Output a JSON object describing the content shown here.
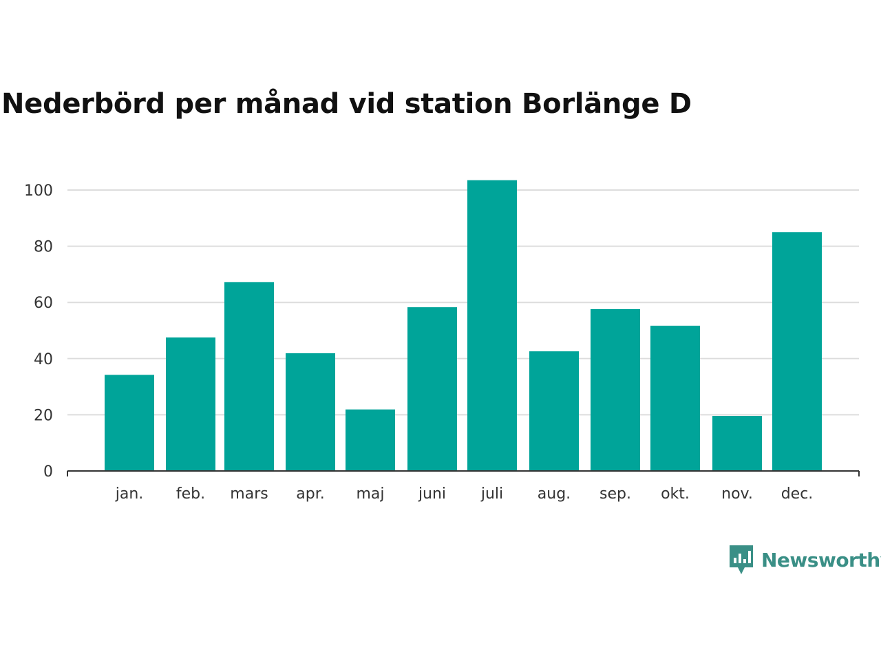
{
  "chart_data": {
    "type": "bar",
    "title": "Nederbörd per månad vid station Borlänge D",
    "xlabel": "",
    "ylabel": "",
    "categories": [
      "jan.",
      "feb.",
      "mars",
      "apr.",
      "maj",
      "juni",
      "juli",
      "aug.",
      "sep.",
      "okt.",
      "nov.",
      "dec."
    ],
    "values": [
      34.2,
      47.5,
      67.2,
      41.9,
      21.9,
      58.3,
      103.5,
      42.6,
      57.6,
      51.7,
      19.6,
      85.0
    ],
    "ylim": [
      0,
      105
    ],
    "yticks": [
      "0",
      "20",
      "40",
      "60",
      "80",
      "100"
    ],
    "grid": true,
    "legend": "none",
    "colors": {
      "bar": "#00a499",
      "grid": "#dddddd",
      "axis": "#333333"
    }
  },
  "brand": {
    "name": "Newsworthy",
    "icon": "newsworthy-logo-icon",
    "color": "#3a8f86"
  }
}
